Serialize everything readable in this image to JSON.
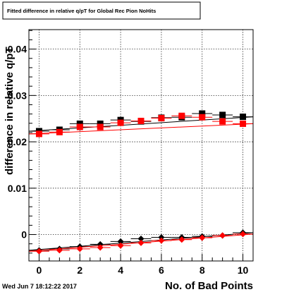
{
  "header": {
    "title": "Fitted difference in relative q/pT for Global Rec Pion NoHits",
    "timestamp": "Wed Jun  7 18:12:22 2017"
  },
  "chart_data": {
    "type": "scatter",
    "title": "Fitted difference in relative q/pT for Global Rec Pion NoHits",
    "xlabel": "No. of Bad Points",
    "ylabel": "difference in relative q/pT",
    "xlim": [
      -0.5,
      10.5
    ],
    "ylim": [
      -0.0057,
      0.0442
    ],
    "x_ticks": [
      0,
      2,
      4,
      6,
      8,
      10
    ],
    "x_tick_labels": [
      "0",
      "2",
      "4",
      "6",
      "8",
      "10"
    ],
    "y_ticks": [
      0,
      0.01,
      0.02,
      0.03,
      0.04
    ],
    "y_tick_labels": [
      "0",
      "0.01",
      "0.02",
      "0.03",
      "0.04"
    ],
    "grid": true,
    "series": [
      {
        "marker": "square",
        "color": "#000000",
        "x": [
          0,
          1,
          2,
          3,
          4,
          5,
          6,
          7,
          8,
          9,
          10
        ],
        "y": [
          0.0223,
          0.0226,
          0.0239,
          0.0239,
          0.0247,
          0.0244,
          0.0252,
          0.0253,
          0.0261,
          0.0258,
          0.0254
        ],
        "fit_line": [
          0.0223,
          0.0254
        ]
      },
      {
        "marker": "square",
        "color": "#ff0000",
        "x": [
          0,
          1,
          2,
          3,
          4,
          5,
          6,
          7,
          8,
          9,
          10
        ],
        "y": [
          0.0217,
          0.0221,
          0.0232,
          0.0232,
          0.0241,
          0.0245,
          0.0251,
          0.0256,
          0.0253,
          0.0244,
          0.0239
        ],
        "fit_line": [
          0.0217,
          0.0239
        ]
      },
      {
        "marker": "diamond",
        "color": "#000000",
        "x": [
          0,
          1,
          2,
          3,
          4,
          5,
          6,
          7,
          8,
          9,
          10
        ],
        "y": [
          -0.0034,
          -0.0031,
          -0.0026,
          -0.0021,
          -0.0015,
          -0.0009,
          -0.0006,
          -0.0006,
          -0.0004,
          -0.0002,
          0.0004
        ],
        "fit_line": [
          -0.0034,
          0.0004
        ]
      },
      {
        "marker": "diamond",
        "color": "#ff0000",
        "x": [
          0,
          1,
          2,
          3,
          4,
          5,
          6,
          7,
          8,
          9,
          10
        ],
        "y": [
          -0.0036,
          -0.0034,
          -0.0031,
          -0.0028,
          -0.0024,
          -0.0018,
          -0.0013,
          -0.0011,
          -0.0007,
          -0.0002,
          0.0001
        ],
        "fit_line": [
          -0.0036,
          0.0001
        ]
      }
    ]
  }
}
